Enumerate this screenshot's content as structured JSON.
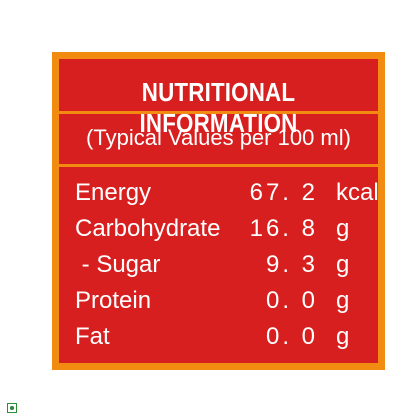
{
  "panel": {
    "title": "NUTRITIONAL INFORMATION",
    "subtitle": "(Typical Values per 100 ml)",
    "rows": [
      {
        "label": "Energy",
        "value": "67. 2",
        "unit": "kcal"
      },
      {
        "label": "Carbohydrate",
        "value": "16. 8",
        "unit": "g"
      },
      {
        "label": " - Sugar",
        "value": "9. 3",
        "unit": "g"
      },
      {
        "label": "Protein",
        "value": "0. 0",
        "unit": "g"
      },
      {
        "label": "Fat",
        "value": "0. 0",
        "unit": "g"
      }
    ]
  },
  "badge": {
    "icon": "veg-mark-icon"
  },
  "colors": {
    "border": "#f28c10",
    "background": "#d81f1f",
    "text": "#ffffff",
    "badge": "#2e8b3a"
  }
}
